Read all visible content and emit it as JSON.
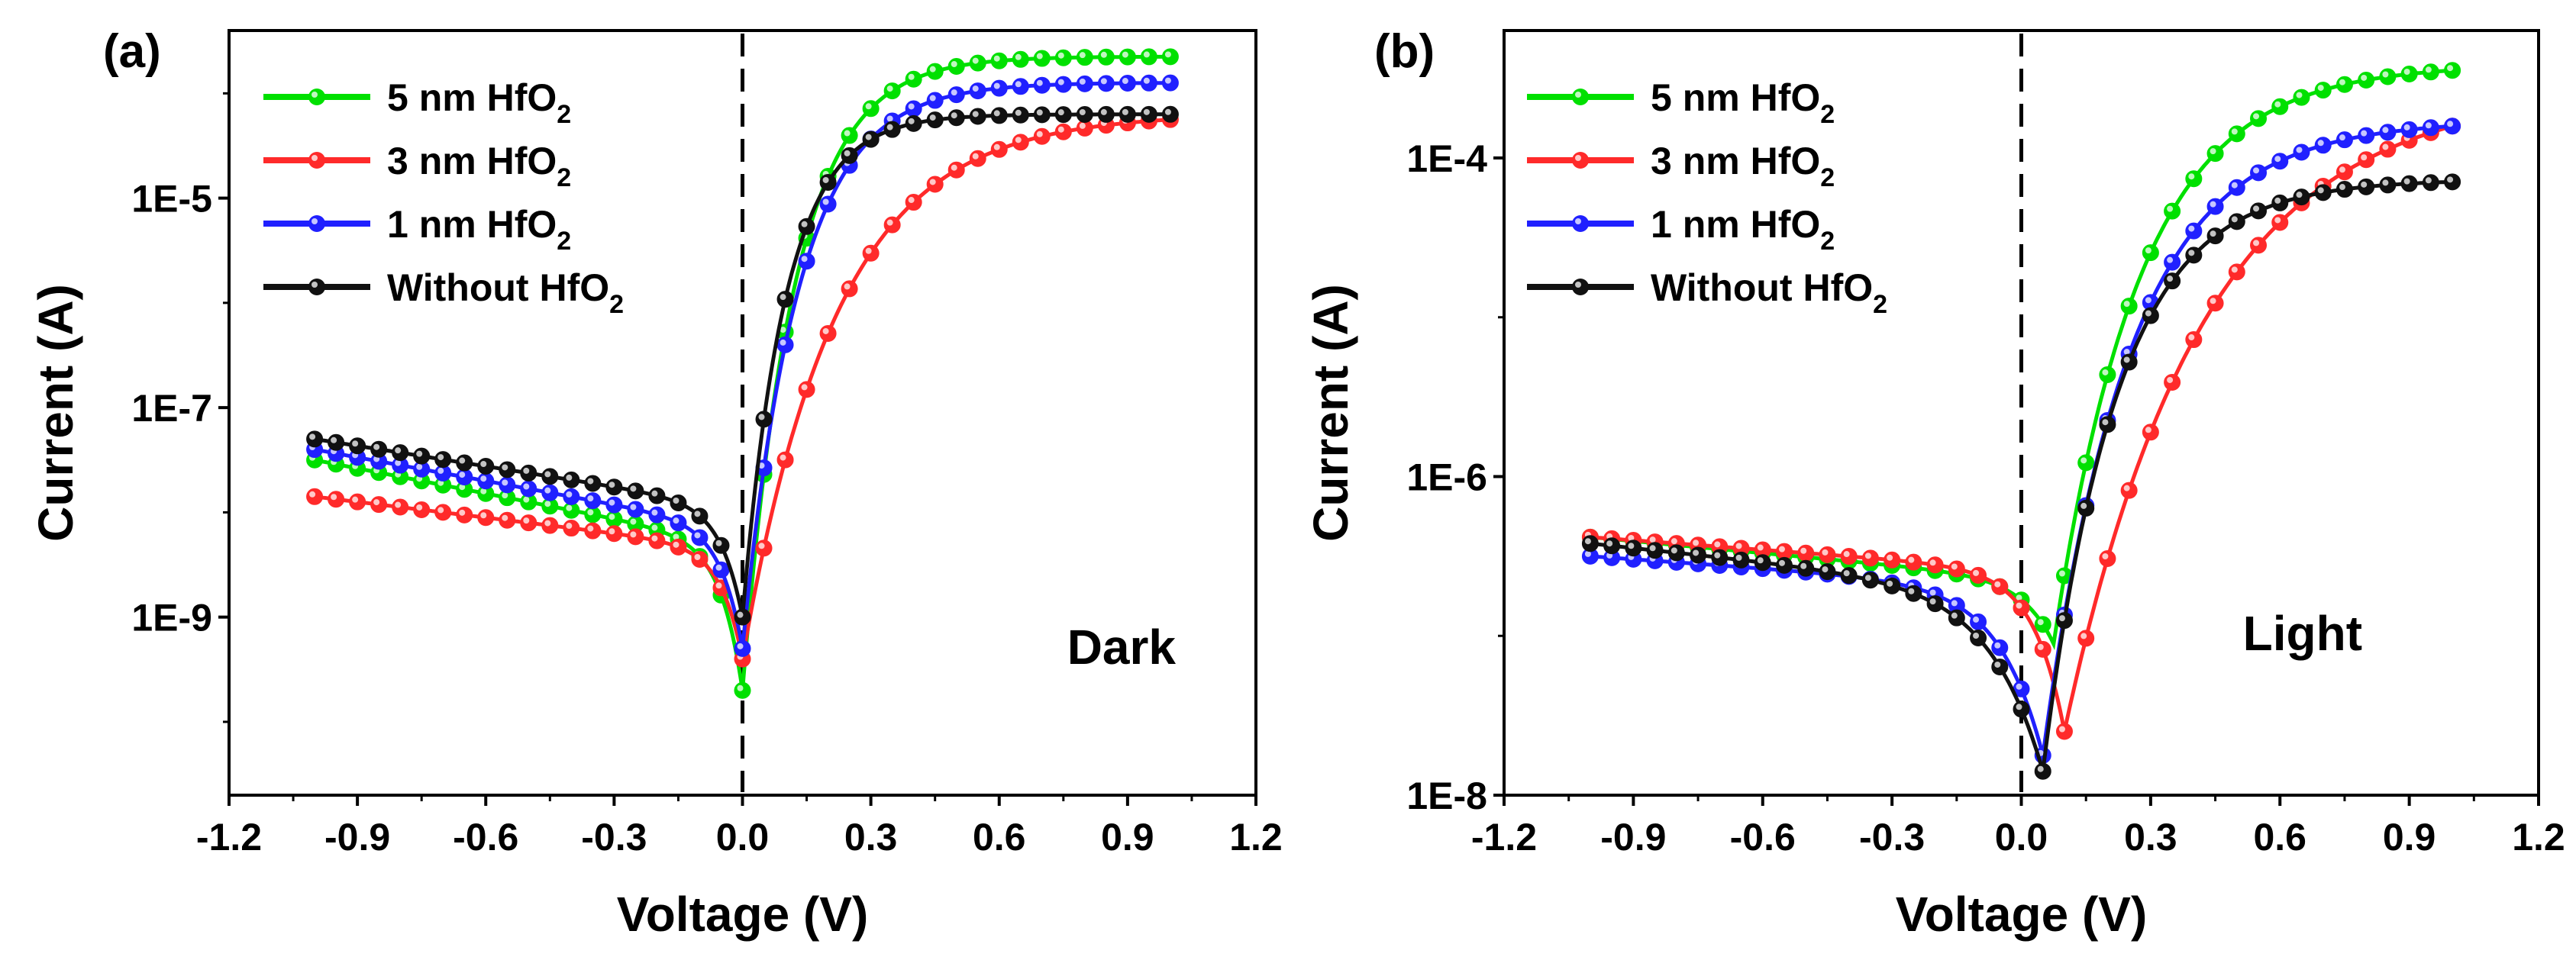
{
  "chart_data": [
    {
      "type": "line",
      "panel_label": "(a)",
      "annotation": "Dark",
      "xlabel": "Voltage (V)",
      "ylabel": "Current (A)",
      "xlim": [
        -1.2,
        1.2
      ],
      "ylim_log10": [
        -10.7,
        -3.4
      ],
      "xticks": [
        "-1.2",
        "-0.9",
        "-0.6",
        "-0.3",
        "0.0",
        "0.3",
        "0.6",
        "0.9",
        "1.2"
      ],
      "yticks": [
        {
          "exp": -9,
          "label": "1E-9"
        },
        {
          "exp": -7,
          "label": "1E-7"
        },
        {
          "exp": -5,
          "label": "1E-5"
        }
      ],
      "reference_line_x": 0.0,
      "legend": {
        "position": "top-left"
      },
      "series": [
        {
          "name": "5 nm HfO",
          "subscript": "2",
          "color": "#00e000",
          "neg": {
            "v0": -1.0,
            "logI0": -7.5,
            "logIend": -8.3,
            "sharp": 0.05,
            "dip": -9.2
          },
          "pos": {
            "logIdip": -9.7,
            "logIend": -3.65,
            "scale": 0.12
          }
        },
        {
          "name": "3 nm HfO",
          "subscript": "2",
          "color": "#ff2a2a",
          "neg": {
            "v0": -1.0,
            "logI0": -7.85,
            "logIend": -8.35,
            "sharp": 0.05,
            "dip": -9.3
          },
          "pos": {
            "logIdip": -9.4,
            "logIend": -4.25,
            "scale": 0.22
          }
        },
        {
          "name": "1 nm HfO",
          "subscript": "2",
          "color": "#2020ff",
          "neg": {
            "v0": -1.0,
            "logI0": -7.4,
            "logIend": -8.15,
            "sharp": 0.05,
            "dip": -9.1
          },
          "pos": {
            "logIdip": -9.3,
            "logIend": -3.9,
            "scale": 0.13
          }
        },
        {
          "name": "Without HfO",
          "subscript": "2",
          "color": "#111111",
          "neg": {
            "v0": -1.0,
            "logI0": -7.3,
            "logIend": -7.95,
            "sharp": 0.05,
            "dip": -9.0
          },
          "pos": {
            "logIdip": -9.0,
            "logIend": -4.2,
            "scale": 0.1
          }
        }
      ]
    },
    {
      "type": "line",
      "panel_label": "(b)",
      "annotation": "Light",
      "xlabel": "Voltage (V)",
      "ylabel": "Current (A)",
      "xlim": [
        -1.2,
        1.2
      ],
      "ylim_log10": [
        -8.0,
        -3.2
      ],
      "xticks": [
        "-1.2",
        "-0.9",
        "-0.6",
        "-0.3",
        "0.0",
        "0.3",
        "0.6",
        "0.9",
        "1.2"
      ],
      "yticks": [
        {
          "exp": -8,
          "label": "1E-8"
        },
        {
          "exp": -6,
          "label": "1E-6"
        },
        {
          "exp": -4,
          "label": "1E-4"
        }
      ],
      "reference_line_x": 0.0,
      "legend": {
        "position": "top-left"
      },
      "series": [
        {
          "name": "5 nm HfO",
          "subscript": "2",
          "color": "#00e000",
          "neg": {
            "v0": -1.0,
            "logI0": -6.38,
            "logIend": -6.65,
            "sharp": 0.07,
            "dip": -7.0
          },
          "pos": {
            "xdip": 0.075,
            "logIdip": -7.05,
            "logIend": -3.45,
            "scale": 0.2
          }
        },
        {
          "name": "3 nm HfO",
          "subscript": "2",
          "color": "#ff2a2a",
          "neg": {
            "v0": -1.0,
            "logI0": -6.38,
            "logIend": -6.6,
            "sharp": 0.07,
            "dip": -6.85
          },
          "pos": {
            "xdip": 0.1,
            "logIdip": -7.6,
            "logIend": -3.8,
            "scale": 0.32
          }
        },
        {
          "name": "1 nm HfO",
          "subscript": "2",
          "color": "#2020ff",
          "neg": {
            "v0": -1.0,
            "logI0": -6.5,
            "logIend": -6.7,
            "sharp": 0.1,
            "dip": -7.2
          },
          "pos": {
            "xdip": 0.05,
            "logIdip": -7.75,
            "logIend": -3.8,
            "scale": 0.2
          }
        },
        {
          "name": "Without HfO",
          "subscript": "2",
          "color": "#111111",
          "neg": {
            "v0": -1.0,
            "logI0": -6.42,
            "logIend": -6.72,
            "sharp": 0.12,
            "dip": -7.4
          },
          "pos": {
            "xdip": 0.05,
            "logIdip": -7.85,
            "logIend": -4.15,
            "scale": 0.17
          }
        }
      ]
    }
  ]
}
